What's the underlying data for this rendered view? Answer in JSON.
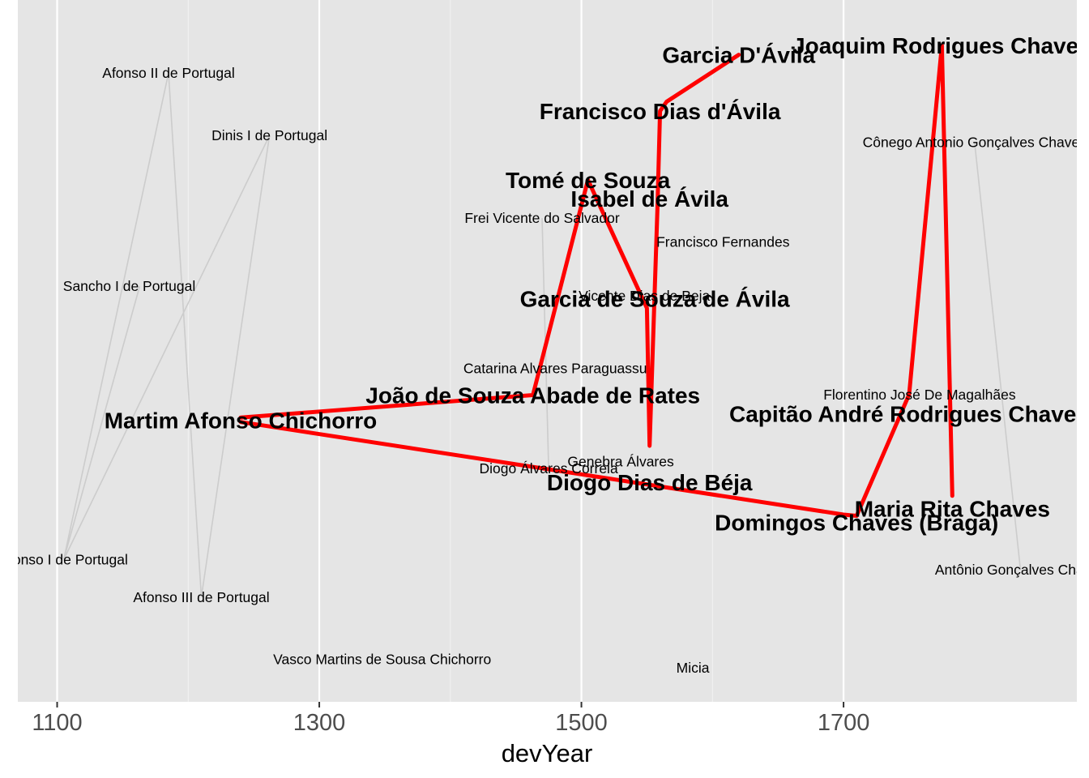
{
  "chart_data": {
    "type": "line",
    "xlabel": "devYear",
    "ylabel": "",
    "xlim": [
      1070,
      1878
    ],
    "ylim": [
      0,
      100
    ],
    "x_ticks": [
      1100,
      1300,
      1500,
      1700
    ],
    "grid": true,
    "colors": {
      "panel": "#e5e5e5",
      "grid": "#ffffff",
      "highlight": "#ff0000",
      "background_line": "#cccccc"
    },
    "series": [
      {
        "style": "background",
        "points": [
          {
            "x": 1105,
            "y": 17.8
          },
          {
            "x": 1185,
            "y": 95.6
          },
          {
            "x": 1210,
            "y": 11.8
          },
          {
            "x": 1262,
            "y": 85.6
          },
          {
            "x": 1105,
            "y": 17.8
          },
          {
            "x": 1163,
            "y": 61.5
          }
        ]
      },
      {
        "style": "background",
        "points": [
          {
            "x": 1470,
            "y": 72.4
          },
          {
            "x": 1475,
            "y": 32.4
          }
        ]
      },
      {
        "style": "background",
        "points": [
          {
            "x": 1800,
            "y": 84.5
          },
          {
            "x": 1835,
            "y": 16.2
          }
        ]
      },
      {
        "style": "highlight",
        "points": [
          {
            "x": 1240,
            "y": 40.5
          },
          {
            "x": 1463,
            "y": 44.1
          },
          {
            "x": 1505,
            "y": 78.5
          },
          {
            "x": 1550,
            "y": 58.0
          },
          {
            "x": 1552,
            "y": 36.0
          },
          {
            "x": 1558,
            "y": 74.0
          },
          {
            "x": 1560,
            "y": 89.5
          },
          {
            "x": 1565,
            "y": 91.0
          },
          {
            "x": 1620,
            "y": 98.5
          }
        ]
      },
      {
        "style": "highlight",
        "points": [
          {
            "x": 1240,
            "y": 39.8
          },
          {
            "x": 1700,
            "y": 25.0
          },
          {
            "x": 1710,
            "y": 24.8
          },
          {
            "x": 1750,
            "y": 44.2
          },
          {
            "x": 1775,
            "y": 100.0
          },
          {
            "x": 1783,
            "y": 28.0
          }
        ]
      }
    ],
    "labels": [
      {
        "text": "Afonso II de Portugal",
        "x": 1185,
        "y": 95.6,
        "size": "small"
      },
      {
        "text": "Dinis I de Portugal",
        "x": 1262,
        "y": 85.6,
        "size": "small"
      },
      {
        "text": "Sancho I de Portugal",
        "x": 1155,
        "y": 61.5,
        "size": "small"
      },
      {
        "text": "Afonso I de Portugal",
        "x": 1105,
        "y": 17.8,
        "size": "small"
      },
      {
        "text": "Afonso III de Portugal",
        "x": 1210,
        "y": 11.8,
        "size": "small"
      },
      {
        "text": "Vasco Martins de Sousa Chichorro",
        "x": 1348,
        "y": 1.9,
        "size": "small"
      },
      {
        "text": "Frei Vicente do Salvador",
        "x": 1470,
        "y": 72.4,
        "size": "small"
      },
      {
        "text": "Catarina Alvares Paraguassu",
        "x": 1480,
        "y": 48.4,
        "size": "small"
      },
      {
        "text": "Diogo Álvares Correia",
        "x": 1475,
        "y": 32.4,
        "size": "small"
      },
      {
        "text": "Genebra Álvares",
        "x": 1530,
        "y": 33.5,
        "size": "small"
      },
      {
        "text": "Vicente Dias de Beja",
        "x": 1548,
        "y": 60.0,
        "size": "small"
      },
      {
        "text": "Francisco Fernandes",
        "x": 1608,
        "y": 68.6,
        "size": "small"
      },
      {
        "text": "Micia",
        "x": 1585,
        "y": 0.5,
        "size": "small"
      },
      {
        "text": "Florentino José De Magalhães",
        "x": 1758,
        "y": 44.2,
        "size": "small"
      },
      {
        "text": "Cônego Antonio Gonçalves Chaves",
        "x": 1800,
        "y": 84.5,
        "size": "small"
      },
      {
        "text": "Antônio Gonçalves Chaves",
        "x": 1835,
        "y": 16.2,
        "size": "small"
      },
      {
        "text": "Martim Afonso Chichorro",
        "x": 1240,
        "y": 40.1,
        "size": "big"
      },
      {
        "text": "João de Souza Abade de Rates",
        "x": 1463,
        "y": 44.1,
        "size": "big"
      },
      {
        "text": "Tomé de Souza",
        "x": 1505,
        "y": 78.5,
        "size": "big"
      },
      {
        "text": "Isabel de Ávila",
        "x": 1552,
        "y": 75.5,
        "size": "big"
      },
      {
        "text": "Garcia de Souza de Ávila",
        "x": 1556,
        "y": 59.5,
        "size": "big"
      },
      {
        "text": "Diogo Dias de Béja",
        "x": 1552,
        "y": 30.2,
        "size": "big"
      },
      {
        "text": "Francisco Dias d'Ávila",
        "x": 1560,
        "y": 89.5,
        "size": "big"
      },
      {
        "text": "Garcia D'Ávila",
        "x": 1620,
        "y": 98.5,
        "size": "big"
      },
      {
        "text": "Joaquim Rodrigues Chaves",
        "x": 1775,
        "y": 100.0,
        "size": "big"
      },
      {
        "text": "Capitão André Rodrigues Chaves",
        "x": 1750,
        "y": 41.1,
        "size": "big"
      },
      {
        "text": "Maria Rita Chaves",
        "x": 1783,
        "y": 26.0,
        "size": "big"
      },
      {
        "text": "Domingos Chaves (Braga)",
        "x": 1710,
        "y": 23.8,
        "size": "big"
      }
    ]
  }
}
